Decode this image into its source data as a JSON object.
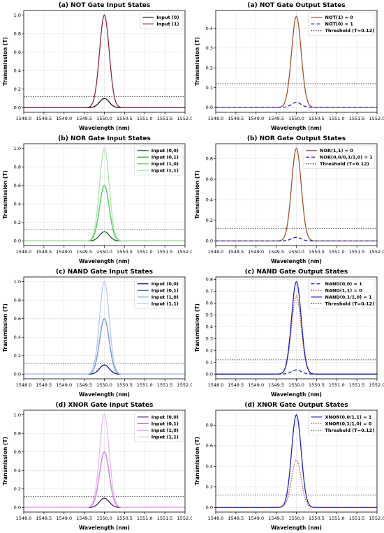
{
  "chart_data": [
    {
      "type": "line",
      "title": "(a) NOT Gate Input States",
      "xlabel": "Wavelength (nm)",
      "ylabel": "Transmission (T)",
      "xlim": [
        1548.0,
        1552.0
      ],
      "ylim": [
        -0.05,
        1.05
      ],
      "xticks": [
        "1548.0",
        "1548.5",
        "1549.0",
        "1549.5",
        "1550.0",
        "1550.5",
        "1551.0",
        "1551.5",
        "1552.0"
      ],
      "yticks": [
        "0.0",
        "0.2",
        "0.4",
        "0.6",
        "0.8",
        "1.0"
      ],
      "grid": true,
      "legend_position": "top-right",
      "gaussian_center": 1550.0,
      "gaussian_sigma": 0.12,
      "series": [
        {
          "name": "Input (0)",
          "peak": 0.1,
          "color": "#111111",
          "dash": "solid"
        },
        {
          "name": "Input (1)",
          "peak": 1.0,
          "color": "#8b2a3a",
          "dash": "solid"
        }
      ],
      "threshold": {
        "value": 0.12,
        "color": "#333333",
        "dash": "dotted"
      }
    },
    {
      "type": "line",
      "title": "(a) NOT Gate Output States",
      "xlabel": "Wavelength (nm)",
      "ylabel": "Transmission (T)",
      "xlim": [
        1548.0,
        1552.0
      ],
      "ylim": [
        -0.025,
        0.49
      ],
      "xticks": [
        "1548.0",
        "1548.5",
        "1549.0",
        "1549.5",
        "1550.0",
        "1550.5",
        "1551.0",
        "1551.5",
        "1552.0"
      ],
      "yticks": [
        "0.0",
        "0.1",
        "0.2",
        "0.3",
        "0.4"
      ],
      "grid": true,
      "legend_position": "top-right",
      "gaussian_center": 1550.0,
      "gaussian_sigma": 0.12,
      "series": [
        {
          "name": "NOT(1) = 0",
          "peak": 0.46,
          "color": "#a0522d",
          "dash": "solid"
        },
        {
          "name": "NOT(0) = 1",
          "peak": 0.025,
          "color": "#1f1fcc",
          "dash": "dashed"
        },
        {
          "name": "Threshold (T=0.12)",
          "color": "#333333",
          "dash": "dotted",
          "threshold": 0.12
        }
      ]
    },
    {
      "type": "line",
      "title": "(b) NOR Gate Input States",
      "xlabel": "Wavelength (nm)",
      "ylabel": "Transmission (T)",
      "xlim": [
        1548.0,
        1552.0
      ],
      "ylim": [
        -0.05,
        1.05
      ],
      "xticks": [
        "1548.0",
        "1548.5",
        "1549.0",
        "1549.5",
        "1550.0",
        "1550.5",
        "1551.0",
        "1551.5",
        "1552.0"
      ],
      "yticks": [
        "0.0",
        "0.2",
        "0.4",
        "0.6",
        "0.8",
        "1.0"
      ],
      "grid": true,
      "legend_position": "top-right",
      "gaussian_center": 1550.0,
      "gaussian_sigma": 0.12,
      "series": [
        {
          "name": "Input (0,0)",
          "peak": 0.1,
          "color": "#1b5e20",
          "dash": "solid"
        },
        {
          "name": "Input (0,1)",
          "peak": 0.6,
          "color": "#2e9e2e",
          "dash": "solid"
        },
        {
          "name": "Input (1,0)",
          "peak": 0.6,
          "color": "#5fcf5f",
          "dash": "solid"
        },
        {
          "name": "Input (1,1)",
          "peak": 1.0,
          "color": "#a6e8a6",
          "dash": "solid"
        }
      ],
      "threshold": {
        "value": 0.12,
        "color": "#333333",
        "dash": "dotted"
      }
    },
    {
      "type": "line",
      "title": "(b) NOR Gate Output States",
      "xlabel": "Wavelength (nm)",
      "ylabel": "Transmission (T)",
      "xlim": [
        1548.0,
        1552.0
      ],
      "ylim": [
        -0.045,
        0.945
      ],
      "xticks": [
        "1548.0",
        "1548.5",
        "1549.0",
        "1549.5",
        "1550.0",
        "1550.5",
        "1551.0",
        "1551.5",
        "1552.0"
      ],
      "yticks": [
        "0.0",
        "0.2",
        "0.4",
        "0.6",
        "0.8"
      ],
      "grid": true,
      "legend_position": "top-right",
      "gaussian_center": 1550.0,
      "gaussian_sigma": 0.12,
      "series": [
        {
          "name": "NOR(1,1) = 0",
          "peak": 0.9,
          "color": "#a0522d",
          "dash": "solid"
        },
        {
          "name": "NOR(0,0/0,1/1,0) = 1",
          "peak": 0.035,
          "color": "#1f1fcc",
          "dash": "dashed"
        },
        {
          "name": "Threshold (T=0.12)",
          "color": "#333333",
          "dash": "dotted",
          "threshold": 0.12
        }
      ]
    },
    {
      "type": "line",
      "title": "(c) NAND Gate Input States",
      "xlabel": "Wavelength (nm)",
      "ylabel": "Transmission (T)",
      "xlim": [
        1548.0,
        1552.0
      ],
      "ylim": [
        -0.05,
        1.05
      ],
      "xticks": [
        "1548.0",
        "1548.5",
        "1549.0",
        "1549.5",
        "1550.0",
        "1550.5",
        "1551.0",
        "1551.5",
        "1552.0"
      ],
      "yticks": [
        "0.0",
        "0.2",
        "0.4",
        "0.6",
        "0.8",
        "1.0"
      ],
      "grid": true,
      "legend_position": "top-right",
      "gaussian_center": 1550.0,
      "gaussian_sigma": 0.12,
      "series": [
        {
          "name": "Input (0,0)",
          "peak": 0.1,
          "color": "#0d1b6e",
          "dash": "solid"
        },
        {
          "name": "Input (0,1)",
          "peak": 0.6,
          "color": "#3a5fcd",
          "dash": "solid"
        },
        {
          "name": "Input (1,0)",
          "peak": 0.6,
          "color": "#7f9fe0",
          "dash": "solid"
        },
        {
          "name": "Input (1,1)",
          "peak": 1.0,
          "color": "#b8c8ee",
          "dash": "solid"
        }
      ],
      "threshold": {
        "value": 0.12,
        "color": "#333333",
        "dash": "dotted"
      }
    },
    {
      "type": "line",
      "title": "(c) NAND Gate Output States",
      "xlabel": "Wavelength (nm)",
      "ylabel": "Transmission (T)",
      "xlim": [
        1548.0,
        1552.0
      ],
      "ylim": [
        -0.04,
        0.82
      ],
      "xticks": [
        "1548.0",
        "1548.5",
        "1549.0",
        "1549.5",
        "1550.0",
        "1550.5",
        "1551.0",
        "1551.5",
        "1552.0"
      ],
      "yticks": [
        "0.0",
        "0.1",
        "0.2",
        "0.3",
        "0.4",
        "0.5",
        "0.6",
        "0.7",
        "0.8"
      ],
      "grid": true,
      "legend_position": "top-right",
      "gaussian_center": 1550.0,
      "gaussian_sigma": 0.12,
      "series": [
        {
          "name": "NAND(0,0) = 1",
          "peak": 0.035,
          "color": "#1f1fcc",
          "dash": "dashed"
        },
        {
          "name": "NAND(1,1) = 0",
          "peak": 0.66,
          "color": "#a0522d",
          "dash": "dotted"
        },
        {
          "name": "NAND(0,1/1,0) = 1",
          "peak": 0.78,
          "color": "#1f1fcc",
          "dash": "solid"
        },
        {
          "name": "Threshold (T=0.12)",
          "color": "#333333",
          "dash": "dotted",
          "threshold": 0.12
        }
      ]
    },
    {
      "type": "line",
      "title": "(d) XNOR Gate Input States",
      "xlabel": "Wavelength (nm)",
      "ylabel": "Transmission (T)",
      "xlim": [
        1548.0,
        1552.0
      ],
      "ylim": [
        -0.05,
        1.05
      ],
      "xticks": [
        "1548.0",
        "1548.5",
        "1549.0",
        "1549.5",
        "1550.0",
        "1550.5",
        "1551.0",
        "1551.5",
        "1552.0"
      ],
      "yticks": [
        "0.0",
        "0.2",
        "0.4",
        "0.6",
        "0.8",
        "1.0"
      ],
      "grid": true,
      "legend_position": "top-right",
      "gaussian_center": 1550.0,
      "gaussian_sigma": 0.12,
      "series": [
        {
          "name": "Input (0,0)",
          "peak": 0.1,
          "color": "#4a1a5e",
          "dash": "solid"
        },
        {
          "name": "Input (0,1)",
          "peak": 0.6,
          "color": "#b040c8",
          "dash": "solid"
        },
        {
          "name": "Input (1,0)",
          "peak": 0.6,
          "color": "#d98be6",
          "dash": "solid"
        },
        {
          "name": "Input (1,1)",
          "peak": 1.0,
          "color": "#eab8f0",
          "dash": "solid"
        }
      ],
      "threshold": {
        "value": 0.12,
        "color": "#333333",
        "dash": "dotted"
      }
    },
    {
      "type": "line",
      "title": "(d) XNOR Gate Output States",
      "xlabel": "Wavelength (nm)",
      "ylabel": "Transmission (T)",
      "xlim": [
        1548.0,
        1552.0
      ],
      "ylim": [
        -0.045,
        0.945
      ],
      "xticks": [
        "1548.0",
        "1548.5",
        "1549.0",
        "1549.5",
        "1550.0",
        "1550.5",
        "1551.0",
        "1551.5",
        "1552.0"
      ],
      "yticks": [
        "0.0",
        "0.2",
        "0.4",
        "0.6",
        "0.8"
      ],
      "grid": true,
      "legend_position": "top-right",
      "gaussian_center": 1550.0,
      "gaussian_sigma": 0.12,
      "series": [
        {
          "name": "XNOR(0,0/1,1) = 1",
          "peak": 0.9,
          "color": "#1f1fcc",
          "dash": "solid"
        },
        {
          "name": "XNOR(0,1/1,0) = 0",
          "peak": 0.46,
          "color": "#a0522d",
          "dash": "dotted"
        },
        {
          "name": "Threshold (T=0.12)",
          "color": "#333333",
          "dash": "dotted",
          "threshold": 0.12
        }
      ]
    }
  ]
}
